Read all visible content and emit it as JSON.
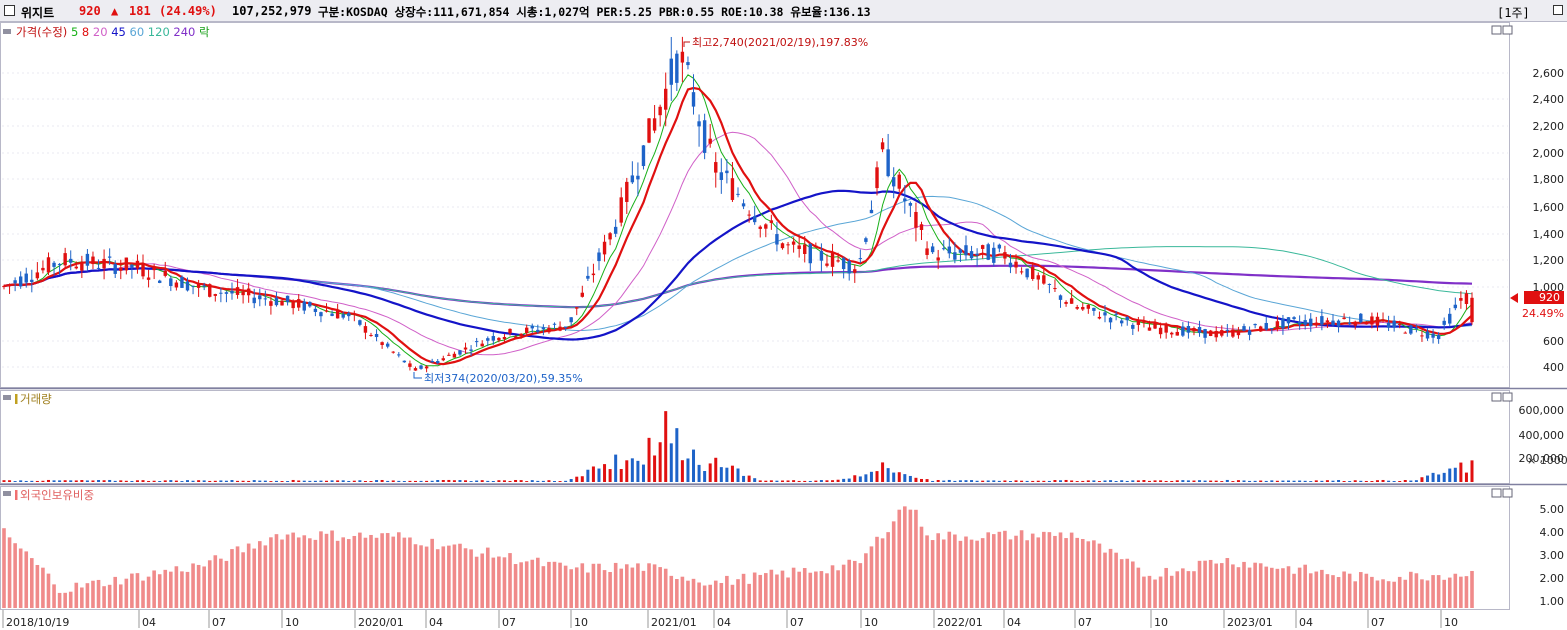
{
  "header": {
    "stock_name": "위지트",
    "price": "920",
    "change_arrow": "▲",
    "change": "181",
    "change_pct": "(24.49%)",
    "volume": "107,252,979",
    "info": "구분:KOSDAQ 상장수:111,671,854 시총:1,027억 PER:5.25 PBR:0.55 ROE:10.38 유보율:136.13",
    "period": "[1주]"
  },
  "colors": {
    "up": "#e01010",
    "down": "#1e63c8",
    "ma5": "#18b018",
    "ma8": "#e01010",
    "ma20": "#d060c8",
    "ma45": "#1414c8",
    "ma60": "#5aa6d6",
    "ma120": "#3ab89a",
    "ma240": "#8030c8"
  },
  "price_panel": {
    "legend": [
      {
        "text": "가격(수정)",
        "color": "#c01010"
      },
      {
        "text": "5",
        "color": "#18b018"
      },
      {
        "text": "8",
        "color": "#e01010"
      },
      {
        "text": "20",
        "color": "#d060c8"
      },
      {
        "text": "45",
        "color": "#1414c8"
      },
      {
        "text": "60",
        "color": "#5aa6d6"
      },
      {
        "text": "120",
        "color": "#3ab89a"
      },
      {
        "text": "240",
        "color": "#8030c8"
      },
      {
        "text": "락",
        "color": "#18a018"
      }
    ],
    "y_ticks": [
      "2,600",
      "2,400",
      "2,200",
      "2,000",
      "1,800",
      "1,600",
      "1,400",
      "1,200",
      "1,000",
      "600",
      "400"
    ],
    "high_annotation": "최고2,740(2021/02/19),197.83%",
    "low_annotation": "최저374(2020/03/20),59.35%",
    "current_price_label": "920",
    "current_pct_label": "24.49%"
  },
  "volume_panel": {
    "title": "거래량",
    "y_ticks": [
      "600,000",
      "400,000",
      "200,000"
    ],
    "unit": "× 1000"
  },
  "foreign_panel": {
    "title": "외국인보유비중",
    "y_ticks": [
      "5.00",
      "4.00",
      "3.00",
      "2.00",
      "1.00"
    ]
  },
  "x_axis": [
    "2018/10/19",
    "04",
    "07",
    "10",
    "2020/01",
    "04",
    "07",
    "10",
    "2021/01",
    "04",
    "07",
    "10",
    "2022/01",
    "04",
    "07",
    "10",
    "2023/01",
    "04",
    "07",
    "10"
  ],
  "chart_data": {
    "type": "candlestick",
    "title": "위지트",
    "xlabel": "",
    "ylabel": "",
    "x_range": [
      "2018/10/19",
      "2023/11"
    ],
    "price_ylim": [
      300,
      2750
    ],
    "price_key_points": [
      {
        "date": "2018/10/19",
        "close": 1000
      },
      {
        "date": "2019/01",
        "close": 1200
      },
      {
        "date": "2019/04",
        "close": 1150
      },
      {
        "date": "2019/07",
        "close": 980
      },
      {
        "date": "2019/10",
        "close": 900
      },
      {
        "date": "2020/01",
        "close": 780
      },
      {
        "date": "2020/03/20",
        "close": 374
      },
      {
        "date": "2020/07",
        "close": 640
      },
      {
        "date": "2020/10",
        "close": 720
      },
      {
        "date": "2020/12",
        "close": 1500
      },
      {
        "date": "2021/02/19",
        "close": 2740
      },
      {
        "date": "2021/04",
        "close": 1900
      },
      {
        "date": "2021/07",
        "close": 1300
      },
      {
        "date": "2021/10",
        "close": 1150
      },
      {
        "date": "2021/11",
        "close": 2000
      },
      {
        "date": "2022/01",
        "close": 1250
      },
      {
        "date": "2022/04",
        "close": 1250
      },
      {
        "date": "2022/07",
        "close": 850
      },
      {
        "date": "2022/10",
        "close": 700
      },
      {
        "date": "2023/01",
        "close": 650
      },
      {
        "date": "2023/04",
        "close": 740
      },
      {
        "date": "2023/07",
        "close": 760
      },
      {
        "date": "2023/10",
        "close": 640
      },
      {
        "date": "2023/11",
        "close": 920
      }
    ],
    "volume_ylim": [
      0,
      700000
    ],
    "volume_spikes_thousands": [
      {
        "date": "2020/12",
        "value": 300000
      },
      {
        "date": "2021/02",
        "value": 650000
      },
      {
        "date": "2021/04",
        "value": 250000
      },
      {
        "date": "2021/11",
        "value": 180000
      },
      {
        "date": "2023/11",
        "value": 190000
      }
    ],
    "foreign_ylim": [
      0.6,
      5.5
    ],
    "foreign_key_points": [
      {
        "date": "2018/10",
        "value": 4.6
      },
      {
        "date": "2019/01",
        "value": 1.5
      },
      {
        "date": "2019/07",
        "value": 2.6
      },
      {
        "date": "2019/10",
        "value": 3.9
      },
      {
        "date": "2020/03",
        "value": 3.8
      },
      {
        "date": "2020/10",
        "value": 2.4
      },
      {
        "date": "2021/01",
        "value": 2.5
      },
      {
        "date": "2021/04",
        "value": 1.8
      },
      {
        "date": "2021/10",
        "value": 2.6
      },
      {
        "date": "2021/12",
        "value": 5.3
      },
      {
        "date": "2022/01",
        "value": 3.8
      },
      {
        "date": "2022/07",
        "value": 3.9
      },
      {
        "date": "2022/10",
        "value": 2.1
      },
      {
        "date": "2023/01",
        "value": 2.8
      },
      {
        "date": "2023/07",
        "value": 2.0
      },
      {
        "date": "2023/11",
        "value": 2.2
      }
    ]
  }
}
